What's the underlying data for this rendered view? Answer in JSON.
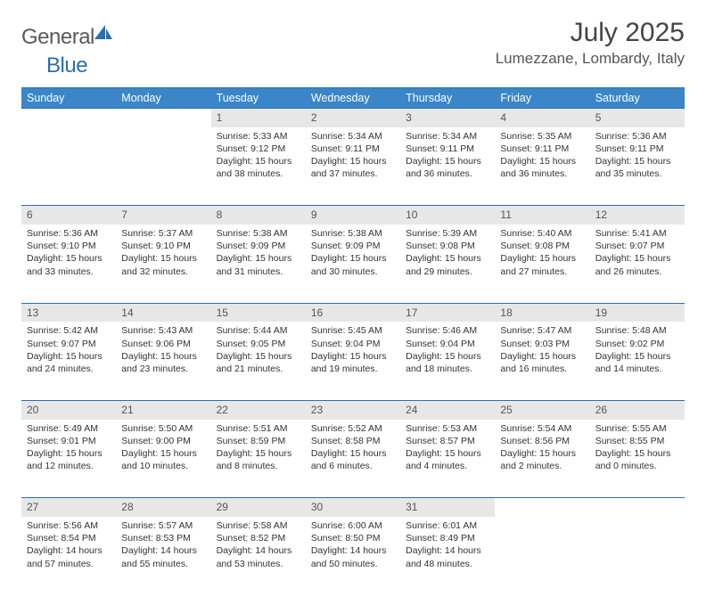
{
  "brand": {
    "name_part1": "General",
    "name_part2": "Blue",
    "logo_color": "#2b6fb0"
  },
  "title": "July 2025",
  "location": "Lumezzane, Lombardy, Italy",
  "colors": {
    "header_bg": "#3a86c8",
    "header_border": "#2b6fb0",
    "daynum_bg": "#e7e7e7"
  },
  "weekdays": [
    "Sunday",
    "Monday",
    "Tuesday",
    "Wednesday",
    "Thursday",
    "Friday",
    "Saturday"
  ],
  "weeks": [
    [
      null,
      null,
      {
        "n": "1",
        "sunrise": "Sunrise: 5:33 AM",
        "sunset": "Sunset: 9:12 PM",
        "day1": "Daylight: 15 hours",
        "day2": "and 38 minutes."
      },
      {
        "n": "2",
        "sunrise": "Sunrise: 5:34 AM",
        "sunset": "Sunset: 9:11 PM",
        "day1": "Daylight: 15 hours",
        "day2": "and 37 minutes."
      },
      {
        "n": "3",
        "sunrise": "Sunrise: 5:34 AM",
        "sunset": "Sunset: 9:11 PM",
        "day1": "Daylight: 15 hours",
        "day2": "and 36 minutes."
      },
      {
        "n": "4",
        "sunrise": "Sunrise: 5:35 AM",
        "sunset": "Sunset: 9:11 PM",
        "day1": "Daylight: 15 hours",
        "day2": "and 36 minutes."
      },
      {
        "n": "5",
        "sunrise": "Sunrise: 5:36 AM",
        "sunset": "Sunset: 9:11 PM",
        "day1": "Daylight: 15 hours",
        "day2": "and 35 minutes."
      }
    ],
    [
      {
        "n": "6",
        "sunrise": "Sunrise: 5:36 AM",
        "sunset": "Sunset: 9:10 PM",
        "day1": "Daylight: 15 hours",
        "day2": "and 33 minutes."
      },
      {
        "n": "7",
        "sunrise": "Sunrise: 5:37 AM",
        "sunset": "Sunset: 9:10 PM",
        "day1": "Daylight: 15 hours",
        "day2": "and 32 minutes."
      },
      {
        "n": "8",
        "sunrise": "Sunrise: 5:38 AM",
        "sunset": "Sunset: 9:09 PM",
        "day1": "Daylight: 15 hours",
        "day2": "and 31 minutes."
      },
      {
        "n": "9",
        "sunrise": "Sunrise: 5:38 AM",
        "sunset": "Sunset: 9:09 PM",
        "day1": "Daylight: 15 hours",
        "day2": "and 30 minutes."
      },
      {
        "n": "10",
        "sunrise": "Sunrise: 5:39 AM",
        "sunset": "Sunset: 9:08 PM",
        "day1": "Daylight: 15 hours",
        "day2": "and 29 minutes."
      },
      {
        "n": "11",
        "sunrise": "Sunrise: 5:40 AM",
        "sunset": "Sunset: 9:08 PM",
        "day1": "Daylight: 15 hours",
        "day2": "and 27 minutes."
      },
      {
        "n": "12",
        "sunrise": "Sunrise: 5:41 AM",
        "sunset": "Sunset: 9:07 PM",
        "day1": "Daylight: 15 hours",
        "day2": "and 26 minutes."
      }
    ],
    [
      {
        "n": "13",
        "sunrise": "Sunrise: 5:42 AM",
        "sunset": "Sunset: 9:07 PM",
        "day1": "Daylight: 15 hours",
        "day2": "and 24 minutes."
      },
      {
        "n": "14",
        "sunrise": "Sunrise: 5:43 AM",
        "sunset": "Sunset: 9:06 PM",
        "day1": "Daylight: 15 hours",
        "day2": "and 23 minutes."
      },
      {
        "n": "15",
        "sunrise": "Sunrise: 5:44 AM",
        "sunset": "Sunset: 9:05 PM",
        "day1": "Daylight: 15 hours",
        "day2": "and 21 minutes."
      },
      {
        "n": "16",
        "sunrise": "Sunrise: 5:45 AM",
        "sunset": "Sunset: 9:04 PM",
        "day1": "Daylight: 15 hours",
        "day2": "and 19 minutes."
      },
      {
        "n": "17",
        "sunrise": "Sunrise: 5:46 AM",
        "sunset": "Sunset: 9:04 PM",
        "day1": "Daylight: 15 hours",
        "day2": "and 18 minutes."
      },
      {
        "n": "18",
        "sunrise": "Sunrise: 5:47 AM",
        "sunset": "Sunset: 9:03 PM",
        "day1": "Daylight: 15 hours",
        "day2": "and 16 minutes."
      },
      {
        "n": "19",
        "sunrise": "Sunrise: 5:48 AM",
        "sunset": "Sunset: 9:02 PM",
        "day1": "Daylight: 15 hours",
        "day2": "and 14 minutes."
      }
    ],
    [
      {
        "n": "20",
        "sunrise": "Sunrise: 5:49 AM",
        "sunset": "Sunset: 9:01 PM",
        "day1": "Daylight: 15 hours",
        "day2": "and 12 minutes."
      },
      {
        "n": "21",
        "sunrise": "Sunrise: 5:50 AM",
        "sunset": "Sunset: 9:00 PM",
        "day1": "Daylight: 15 hours",
        "day2": "and 10 minutes."
      },
      {
        "n": "22",
        "sunrise": "Sunrise: 5:51 AM",
        "sunset": "Sunset: 8:59 PM",
        "day1": "Daylight: 15 hours",
        "day2": "and 8 minutes."
      },
      {
        "n": "23",
        "sunrise": "Sunrise: 5:52 AM",
        "sunset": "Sunset: 8:58 PM",
        "day1": "Daylight: 15 hours",
        "day2": "and 6 minutes."
      },
      {
        "n": "24",
        "sunrise": "Sunrise: 5:53 AM",
        "sunset": "Sunset: 8:57 PM",
        "day1": "Daylight: 15 hours",
        "day2": "and 4 minutes."
      },
      {
        "n": "25",
        "sunrise": "Sunrise: 5:54 AM",
        "sunset": "Sunset: 8:56 PM",
        "day1": "Daylight: 15 hours",
        "day2": "and 2 minutes."
      },
      {
        "n": "26",
        "sunrise": "Sunrise: 5:55 AM",
        "sunset": "Sunset: 8:55 PM",
        "day1": "Daylight: 15 hours",
        "day2": "and 0 minutes."
      }
    ],
    [
      {
        "n": "27",
        "sunrise": "Sunrise: 5:56 AM",
        "sunset": "Sunset: 8:54 PM",
        "day1": "Daylight: 14 hours",
        "day2": "and 57 minutes."
      },
      {
        "n": "28",
        "sunrise": "Sunrise: 5:57 AM",
        "sunset": "Sunset: 8:53 PM",
        "day1": "Daylight: 14 hours",
        "day2": "and 55 minutes."
      },
      {
        "n": "29",
        "sunrise": "Sunrise: 5:58 AM",
        "sunset": "Sunset: 8:52 PM",
        "day1": "Daylight: 14 hours",
        "day2": "and 53 minutes."
      },
      {
        "n": "30",
        "sunrise": "Sunrise: 6:00 AM",
        "sunset": "Sunset: 8:50 PM",
        "day1": "Daylight: 14 hours",
        "day2": "and 50 minutes."
      },
      {
        "n": "31",
        "sunrise": "Sunrise: 6:01 AM",
        "sunset": "Sunset: 8:49 PM",
        "day1": "Daylight: 14 hours",
        "day2": "and 48 minutes."
      },
      null,
      null
    ]
  ]
}
